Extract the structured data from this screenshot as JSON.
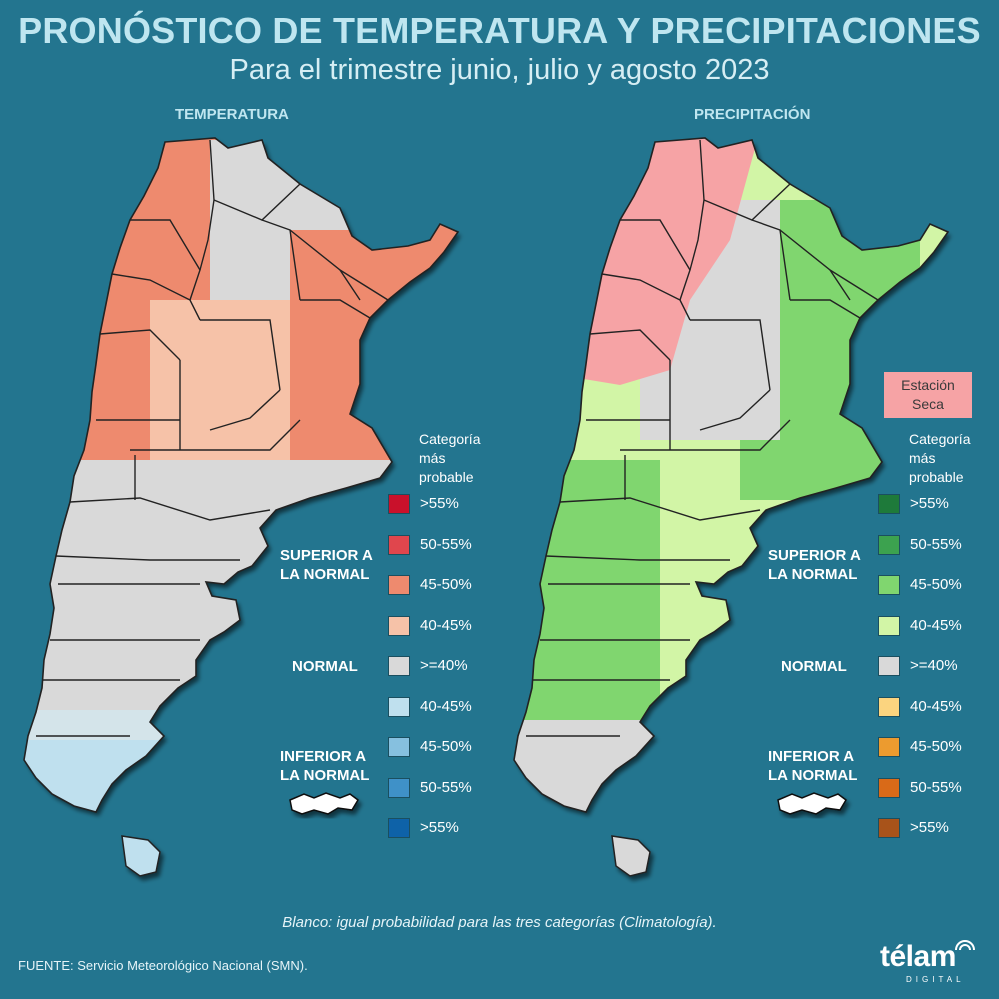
{
  "title": "PRONÓSTICO DE TEMPERATURA Y PRECIPITACIONES",
  "subtitle": "Para el trimestre junio, julio y agosto 2023",
  "maps": {
    "temperature": {
      "heading": "TEMPERATURA",
      "legend_title": "Categoría\nmás\nprobable",
      "group_superior": "SUPERIOR A\nLA NORMAL",
      "group_normal": "NORMAL",
      "group_inferior": "INFERIOR A\nLA NORMAL",
      "legend": [
        {
          "label": ">55%",
          "color": "#c9112b"
        },
        {
          "label": "50-55%",
          "color": "#e0464d"
        },
        {
          "label": "45-50%",
          "color": "#ee8a6e"
        },
        {
          "label": "40-45%",
          "color": "#f6c2a8"
        },
        {
          "label": ">=40%",
          "color": "#d9d9d9"
        },
        {
          "label": "40-45%",
          "color": "#bfe0ee"
        },
        {
          "label": "45-50%",
          "color": "#86c0df"
        },
        {
          "label": "50-55%",
          "color": "#3f91c8"
        },
        {
          "label": ">55%",
          "color": "#0e62a8"
        }
      ]
    },
    "precipitation": {
      "heading": "PRECIPITACIÓN",
      "legend_title": "Categoría\nmás\nprobable",
      "group_superior": "SUPERIOR A\nLA NORMAL",
      "group_normal": "NORMAL",
      "group_inferior": "INFERIOR A\nLA NORMAL",
      "dry_season_label": "Estación\nSeca",
      "dry_season_color": "#f6a3a5",
      "legend": [
        {
          "label": ">55%",
          "color": "#1e7a3a"
        },
        {
          "label": "50-55%",
          "color": "#3ca24f"
        },
        {
          "label": "45-50%",
          "color": "#80d66f"
        },
        {
          "label": "40-45%",
          "color": "#d2f5a6"
        },
        {
          "label": ">=40%",
          "color": "#d9d9d9"
        },
        {
          "label": "40-45%",
          "color": "#fbd47f"
        },
        {
          "label": "45-50%",
          "color": "#ec9b2f"
        },
        {
          "label": "50-55%",
          "color": "#d96a18"
        },
        {
          "label": ">55%",
          "color": "#a8531a"
        }
      ]
    }
  },
  "footnote": "Blanco: igual probabilidad para las tres categorías (Climatología).",
  "source": "FUENTE: Servicio Meteorológico Nacional (SMN).",
  "logo": {
    "word": "télam",
    "sub": "DIGITAL"
  }
}
